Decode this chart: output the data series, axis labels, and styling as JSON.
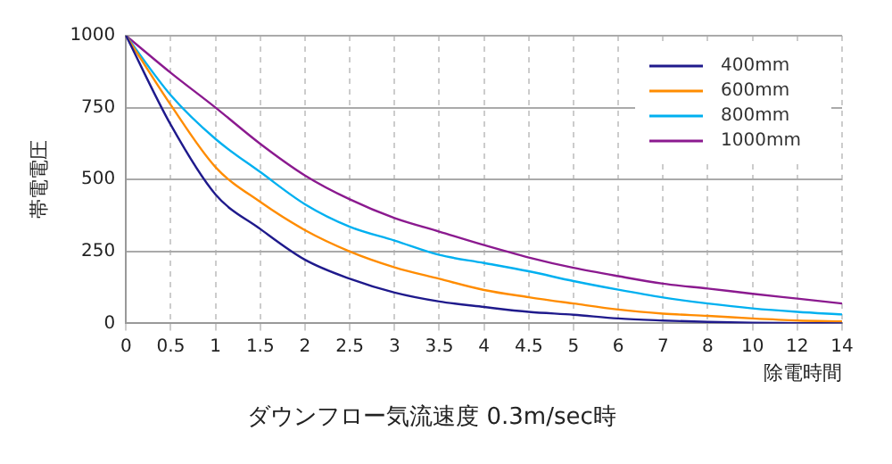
{
  "chart_data": {
    "type": "line",
    "title": "ダウンフロー気流速度 0.3m/sec時",
    "xlabel": "除電時間",
    "ylabel": "帯電電圧",
    "categories": [
      "0",
      "0.5",
      "1",
      "1.5",
      "2",
      "2.5",
      "3",
      "3.5",
      "4",
      "4.5",
      "5",
      "6",
      "7",
      "8",
      "10",
      "12",
      "14"
    ],
    "series": [
      {
        "name": "400mm",
        "color": "#1f1a8c",
        "values": [
          1000,
          690,
          448,
          328,
          221,
          155,
          107,
          76,
          57,
          40,
          30,
          17,
          10,
          5,
          2,
          1,
          0
        ]
      },
      {
        "name": "600mm",
        "color": "#ff8c00",
        "values": [
          1000,
          759,
          543,
          422,
          324,
          250,
          195,
          155,
          116,
          91,
          69,
          48,
          34,
          26,
          17,
          10,
          7
        ]
      },
      {
        "name": "800mm",
        "color": "#00b0f0",
        "values": [
          1000,
          793,
          641,
          526,
          414,
          336,
          288,
          238,
          210,
          181,
          147,
          117,
          90,
          69,
          52,
          40,
          31
        ]
      },
      {
        "name": "1000mm",
        "color": "#8b1a8f",
        "values": [
          1000,
          871,
          750,
          624,
          514,
          431,
          366,
          319,
          272,
          229,
          193,
          164,
          138,
          121,
          103,
          86,
          69
        ]
      }
    ],
    "ylim": [
      0,
      1000
    ],
    "yticks": [
      0,
      250,
      500,
      750,
      1000
    ],
    "grid": true,
    "legend": "top right",
    "marker": "none",
    "line_style": "solid"
  }
}
